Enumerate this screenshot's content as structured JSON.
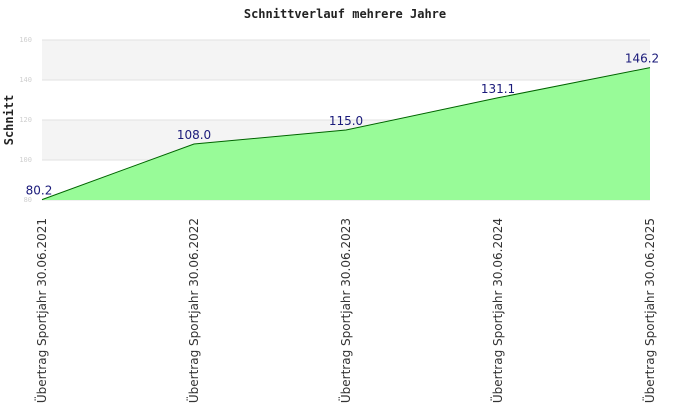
{
  "chart_data": {
    "type": "area",
    "title": "Schnittverlauf mehrere Jahre",
    "ylabel": "Schnitt",
    "xlabel": "",
    "categories": [
      "Übertrag Sportjahr 30.06.2021",
      "Übertrag Sportjahr 30.06.2022",
      "Übertrag Sportjahr 30.06.2023",
      "Übertrag Sportjahr 30.06.2024",
      "Übertrag Sportjahr 30.06.2025"
    ],
    "values": [
      80.2,
      108.0,
      115.0,
      131.1,
      146.2
    ],
    "data_labels": [
      "80.2",
      "108.0",
      "115.0",
      "131.1",
      "146.2"
    ],
    "ylim": [
      80,
      160
    ],
    "yticks": [
      "80",
      "100",
      "120",
      "140",
      "160"
    ],
    "grid": true,
    "legend": "none",
    "colors": {
      "fill": "#98fb98",
      "line": "#006400",
      "band_light": "#f4f4f4",
      "band_white": "#ffffff",
      "gridline": "#e2e2e2",
      "data_label": "#1a1a7a"
    }
  }
}
